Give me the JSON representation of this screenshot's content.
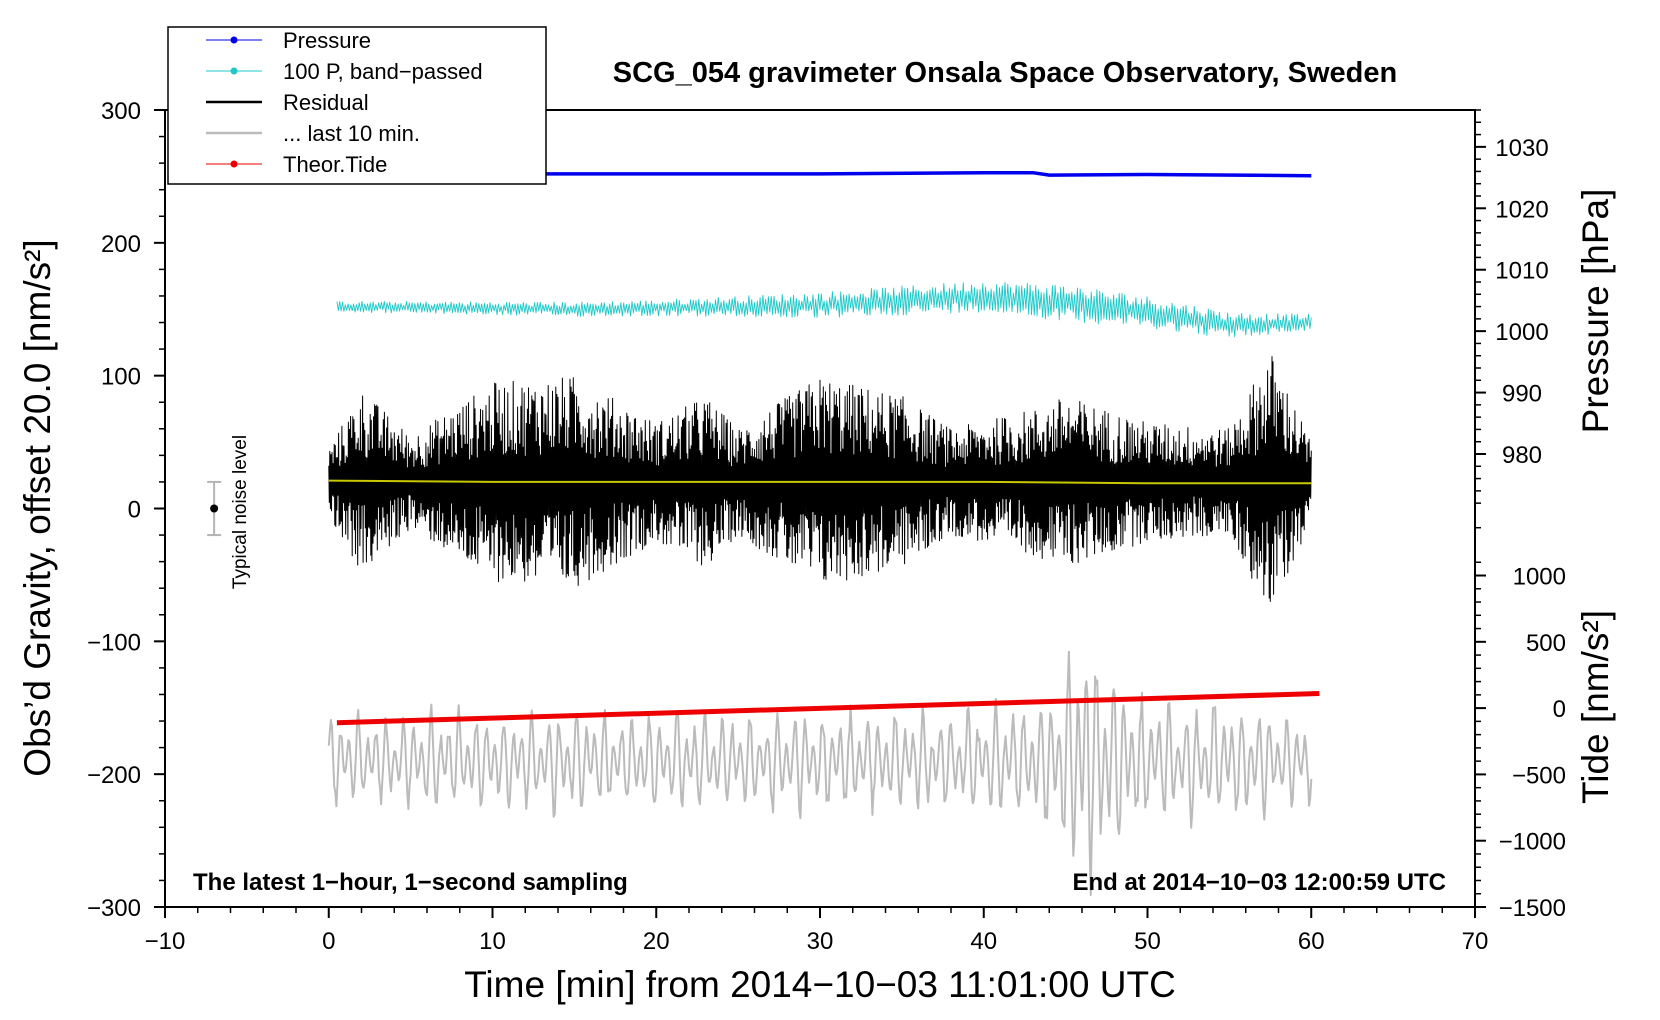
{
  "chart_data": {
    "type": "line",
    "title": "SCG_054 gravimeter Onsala Space Observatory, Sweden",
    "xlabel": "Time [min] from 2014−10−03 11:01:00 UTC",
    "ylabel_left": "Obs’d Gravity, offset 20.0 [nm/s²]",
    "ylabel_pressure": "Pressure [hPa]",
    "ylabel_tide": "Tide [nm/s²]",
    "xlim": [
      -10,
      70
    ],
    "ylim": [
      -300,
      300
    ],
    "x_ticks": [
      -10,
      0,
      10,
      20,
      30,
      40,
      50,
      60,
      70
    ],
    "x_tick_labels": [
      "−10",
      "0",
      "10",
      "20",
      "30",
      "40",
      "50",
      "60",
      "70"
    ],
    "y_ticks": [
      -300,
      -200,
      -100,
      0,
      100,
      200,
      300
    ],
    "y_tick_labels": [
      "−300",
      "−200",
      "−100",
      "0",
      "100",
      "200",
      "300"
    ],
    "pressure_axis": {
      "ticks": [
        980,
        990,
        1000,
        1010,
        1020,
        1030
      ],
      "tick_labels": [
        "980",
        "990",
        "1000",
        "1010",
        "1020",
        "1030"
      ],
      "range": [
        966,
        1036
      ]
    },
    "tide_axis": {
      "ticks": [
        -1500,
        -1000,
        -500,
        0,
        500,
        1000
      ],
      "tick_labels": [
        "−1500",
        "−1000",
        "−500",
        "0",
        "500",
        "1000"
      ],
      "range": [
        -1500,
        1200
      ]
    },
    "series": [
      {
        "name": "Pressure",
        "color": "#0000ee",
        "axis": "pressure",
        "x": [
          0.5,
          10,
          20,
          30,
          40,
          43,
          44,
          50,
          60
        ],
        "values": [
          1025.4,
          1025.6,
          1025.6,
          1025.6,
          1025.8,
          1025.8,
          1025.4,
          1025.5,
          1025.3
        ]
      },
      {
        "name": "100 P, band−passed",
        "color": "#1ec8c8",
        "axis": "left",
        "center": [
          [
            0.5,
            152
          ],
          [
            15,
            150
          ],
          [
            30,
            153
          ],
          [
            40,
            160
          ],
          [
            45,
            155
          ],
          [
            50,
            148
          ],
          [
            55,
            138
          ],
          [
            60,
            140
          ]
        ],
        "amplitude": [
          [
            0,
            4
          ],
          [
            20,
            6
          ],
          [
            30,
            10
          ],
          [
            40,
            12
          ],
          [
            45,
            14
          ],
          [
            55,
            10
          ],
          [
            60,
            6
          ]
        ]
      },
      {
        "name": "Residual",
        "color": "#000000",
        "axis": "left",
        "center": 20,
        "amplitude": [
          [
            0,
            25
          ],
          [
            2,
            70
          ],
          [
            5,
            35
          ],
          [
            10,
            75
          ],
          [
            15,
            80
          ],
          [
            20,
            45
          ],
          [
            23,
            65
          ],
          [
            25,
            40
          ],
          [
            30,
            80
          ],
          [
            35,
            65
          ],
          [
            38,
            40
          ],
          [
            43,
            55
          ],
          [
            45,
            65
          ],
          [
            50,
            45
          ],
          [
            55,
            40
          ],
          [
            57.5,
            100
          ],
          [
            60,
            30
          ]
        ]
      },
      {
        "name": "residual mean",
        "color": "#c8c800",
        "axis": "left",
        "x": [
          0,
          10,
          20,
          30,
          40,
          50,
          60
        ],
        "values": [
          21,
          20,
          20,
          20,
          20,
          19,
          19
        ]
      },
      {
        "name": "... last 10 min.",
        "color": "#bbbbbb",
        "axis": "left",
        "center": -190,
        "amplitude": [
          [
            0,
            40
          ],
          [
            10,
            45
          ],
          [
            20,
            45
          ],
          [
            30,
            45
          ],
          [
            40,
            45
          ],
          [
            44,
            60
          ],
          [
            46,
            120
          ],
          [
            47.5,
            100
          ],
          [
            50,
            55
          ],
          [
            55,
            55
          ],
          [
            60,
            40
          ]
        ]
      },
      {
        "name": "Theor.Tide",
        "color": "#ee0000",
        "axis": "tide",
        "x": [
          0.5,
          60.5
        ],
        "values": [
          -110,
          110
        ]
      }
    ],
    "legend": {
      "position": "top-left",
      "entries": [
        {
          "label": "Pressure",
          "color": "#0000ee",
          "marker": true
        },
        {
          "label": "100 P, band−passed",
          "color": "#1ec8c8",
          "marker": true
        },
        {
          "label": "Residual",
          "color": "#000000",
          "marker": false
        },
        {
          "label": "... last 10 min.",
          "color": "#bbbbbb",
          "marker": false
        },
        {
          "label": "Theor.Tide",
          "color": "#ee0000",
          "marker": true
        }
      ]
    },
    "noise_level": {
      "label": "Typical noise level",
      "x": -7,
      "center": 0,
      "half_range": 20
    },
    "annotations": {
      "bottom_left": "The latest 1−hour, 1−second sampling",
      "bottom_right": "End at 2014−10−03 12:00:59 UTC"
    }
  }
}
